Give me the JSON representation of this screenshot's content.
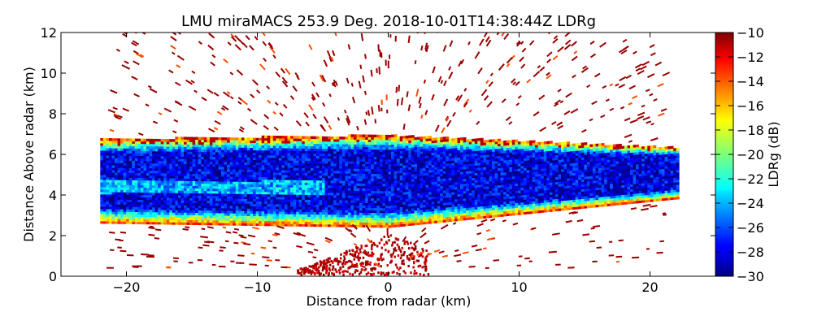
{
  "chart_data": {
    "type": "heatmap",
    "title": "LMU miraMACS 253.9 Deg. 2018-10-01T14:38:44Z  LDRg",
    "xlabel": "Distance from radar (km)",
    "ylabel": "Distance Above radar  (km)",
    "xlim": [
      -25,
      25
    ],
    "ylim": [
      0,
      12
    ],
    "x_ticks": [
      -20,
      -10,
      0,
      10,
      20
    ],
    "y_ticks": [
      0,
      2,
      4,
      6,
      8,
      10,
      12
    ],
    "colorbar": {
      "label": "LDRg (dB)",
      "range": [
        -30,
        -10
      ],
      "ticks": [
        -10,
        -12,
        -14,
        -16,
        -18,
        -20,
        -22,
        -24,
        -26,
        -28,
        -30
      ],
      "colormap": "jet"
    },
    "scan": {
      "azimuth_deg": 253.9,
      "timestamp": "2018-10-01T14:38:44Z",
      "variable": "LDRg",
      "cloud_layer": {
        "x_range_km": [
          -22,
          22
        ],
        "bottom_left_km": 2.6,
        "bottom_center_km": 2.4,
        "bottom_right_km": 3.8,
        "top_left_km": 6.7,
        "top_center_km": 6.9,
        "top_right_km": 6.3,
        "core_ldr_db": -28,
        "edge_ldr_db": -14
      },
      "insects_near_ground": {
        "x_range_km": [
          -7,
          3
        ],
        "height_km": [
          0,
          2
        ],
        "ldr_db": -11
      }
    }
  }
}
